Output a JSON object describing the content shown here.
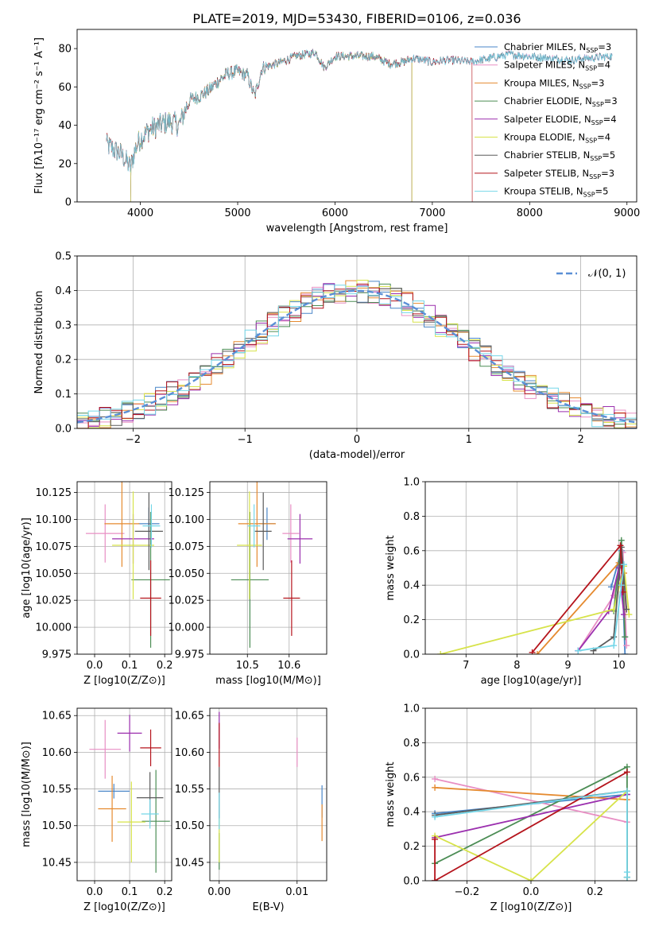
{
  "figure": {
    "title": "PLATE=2019, MJD=53430, FIBERID=0106, z=0.036",
    "series_colors": [
      "#4a86c8",
      "#e88fc4",
      "#e58a2f",
      "#4c8d55",
      "#9b2fae",
      "#d7e34a",
      "#5a5a5a",
      "#b5141c",
      "#74d6e8"
    ]
  },
  "chart_data": [
    {
      "id": "spectrum",
      "type": "line",
      "title": "PLATE=2019, MJD=53430, FIBERID=0106, z=0.036",
      "xlabel": "wavelength [Angstrom, rest frame]",
      "ylabel": "Flux [fλ10⁻¹⁷ erg cm⁻² s⁻¹ A⁻¹]",
      "xlim": [
        3350,
        9100
      ],
      "ylim": [
        0,
        90
      ],
      "xticks": [
        4000,
        5000,
        6000,
        7000,
        8000,
        9000
      ],
      "yticks": [
        0,
        20,
        40,
        60,
        80
      ],
      "legend_position": "top-right",
      "series": [
        {
          "name": "Chabrier MILES, N_SSP=3",
          "wave_range": [
            3650,
            8850
          ]
        },
        {
          "name": "Salpeter MILES, N_SSP=4",
          "wave_range": [
            3650,
            8850
          ]
        },
        {
          "name": "Kroupa MILES, N_SSP=3",
          "wave_range": [
            3650,
            6790
          ]
        },
        {
          "name": "Chabrier ELODIE, N_SSP=3",
          "wave_range": [
            3900,
            6790
          ]
        },
        {
          "name": "Salpeter ELODIE, N_SSP=4",
          "wave_range": [
            3900,
            6790
          ]
        },
        {
          "name": "Kroupa ELODIE, N_SSP=4",
          "wave_range": [
            3900,
            6790
          ]
        },
        {
          "name": "Chabrier STELIB, N_SSP=5",
          "wave_range": [
            3650,
            8850
          ]
        },
        {
          "name": "Salpeter STELIB, N_SSP=3",
          "wave_range": [
            3650,
            7410
          ]
        },
        {
          "name": "Kroupa STELIB, N_SSP=5",
          "wave_range": [
            3650,
            8850
          ]
        }
      ],
      "continuum_points": [
        [
          3650,
          30
        ],
        [
          3800,
          25
        ],
        [
          3900,
          18
        ],
        [
          3950,
          28
        ],
        [
          4000,
          33
        ],
        [
          4100,
          38
        ],
        [
          4300,
          42
        ],
        [
          4400,
          40
        ],
        [
          4500,
          53
        ],
        [
          4600,
          55
        ],
        [
          4700,
          58
        ],
        [
          4800,
          63
        ],
        [
          4900,
          67
        ],
        [
          5000,
          68
        ],
        [
          5100,
          66
        ],
        [
          5175,
          55
        ],
        [
          5250,
          70
        ],
        [
          5400,
          72
        ],
        [
          5600,
          76
        ],
        [
          5800,
          78
        ],
        [
          5890,
          70
        ],
        [
          6000,
          76
        ],
        [
          6200,
          76
        ],
        [
          6400,
          76
        ],
        [
          6560,
          72
        ],
        [
          6700,
          73
        ],
        [
          6800,
          75
        ],
        [
          7000,
          73
        ],
        [
          7200,
          74
        ],
        [
          7400,
          73
        ],
        [
          7600,
          75
        ],
        [
          7800,
          77
        ],
        [
          8000,
          76
        ],
        [
          8200,
          75
        ],
        [
          8400,
          74
        ],
        [
          8600,
          75
        ],
        [
          8850,
          76
        ]
      ]
    },
    {
      "id": "residuals",
      "type": "step",
      "xlabel": "(data-model)/error",
      "ylabel": "Normed distribution",
      "xlim": [
        -2.5,
        2.5
      ],
      "ylim": [
        0,
        0.5
      ],
      "xticks": [
        -2,
        -1,
        0,
        1,
        2
      ],
      "yticks": [
        0.0,
        0.1,
        0.2,
        0.3,
        0.4,
        0.5
      ],
      "bin_width": 0.1,
      "legend": "𝒩(0, 1)",
      "legend_position": "top-right",
      "reference_curve": "normal(0,1)"
    },
    {
      "id": "age-vs-Z",
      "type": "errorbar",
      "xlabel": "Z [log10(Z/Z⊙)]",
      "ylabel": "age  [log10(age/yr)]",
      "xlim": [
        -0.05,
        0.22
      ],
      "ylim": [
        9.975,
        10.135
      ],
      "xticks": [
        0.0,
        0.1,
        0.2
      ],
      "yticks": [
        9.975,
        10.0,
        10.025,
        10.05,
        10.075,
        10.1,
        10.125
      ],
      "points": [
        {
          "x": 0.155,
          "y": 10.096,
          "xerr": 0.03,
          "yerr": 0.015
        },
        {
          "x": 0.03,
          "y": 10.087,
          "xerr": 0.055,
          "yerr": 0.027
        },
        {
          "x": 0.078,
          "y": 10.096,
          "xerr": 0.05,
          "yerr": 0.04
        },
        {
          "x": 0.16,
          "y": 10.044,
          "xerr": 0.055,
          "yerr": 0.063
        },
        {
          "x": 0.11,
          "y": 10.082,
          "xerr": 0.06,
          "yerr": 0.023
        },
        {
          "x": 0.11,
          "y": 10.076,
          "xerr": 0.06,
          "yerr": 0.05
        },
        {
          "x": 0.155,
          "y": 10.089,
          "xerr": 0.04,
          "yerr": 0.036
        },
        {
          "x": 0.16,
          "y": 10.027,
          "xerr": 0.03,
          "yerr": 0.035
        },
        {
          "x": 0.162,
          "y": 10.094,
          "xerr": 0.025,
          "yerr": 0.02
        }
      ]
    },
    {
      "id": "age-vs-mass",
      "type": "errorbar",
      "xlabel": "mass [log10(M/M⊙)]",
      "ylabel": "",
      "xlim": [
        10.41,
        10.69
      ],
      "ylim": [
        9.975,
        10.135
      ],
      "xticks": [
        10.5,
        10.6
      ],
      "yticks": [
        9.975,
        10.0,
        10.025,
        10.05,
        10.075,
        10.1,
        10.125
      ],
      "points": [
        {
          "x": 10.547,
          "y": 10.096,
          "xerr": 0.02,
          "yerr": 0.015
        },
        {
          "x": 10.604,
          "y": 10.087,
          "xerr": 0.02,
          "yerr": 0.027
        },
        {
          "x": 10.523,
          "y": 10.096,
          "xerr": 0.045,
          "yerr": 0.04
        },
        {
          "x": 10.506,
          "y": 10.044,
          "xerr": 0.045,
          "yerr": 0.063
        },
        {
          "x": 10.626,
          "y": 10.082,
          "xerr": 0.03,
          "yerr": 0.023
        },
        {
          "x": 10.505,
          "y": 10.076,
          "xerr": 0.03,
          "yerr": 0.05
        },
        {
          "x": 10.538,
          "y": 10.089,
          "xerr": 0.02,
          "yerr": 0.036
        },
        {
          "x": 10.606,
          "y": 10.027,
          "xerr": 0.02,
          "yerr": 0.035
        },
        {
          "x": 10.516,
          "y": 10.094,
          "xerr": 0.015,
          "yerr": 0.02
        }
      ]
    },
    {
      "id": "weight-vs-age",
      "type": "line",
      "xlabel": "age  [log10(age/yr)]",
      "ylabel": "mass weight",
      "xlim": [
        6.2,
        10.35
      ],
      "ylim": [
        0,
        1
      ],
      "xticks": [
        7,
        8,
        9,
        10
      ],
      "yticks": [
        0.0,
        0.2,
        0.4,
        0.6,
        0.8,
        1.0
      ],
      "series": [
        {
          "points": [
            [
              9.85,
              0.39
            ],
            [
              10.05,
              0.6
            ],
            [
              10.12,
              0.0
            ]
          ]
        },
        {
          "points": [
            [
              9.2,
              0.02
            ],
            [
              9.9,
              0.34
            ],
            [
              10.08,
              0.59
            ],
            [
              10.15,
              0.05
            ]
          ]
        },
        {
          "points": [
            [
              8.4,
              0.0
            ],
            [
              10.0,
              0.53
            ],
            [
              10.1,
              0.47
            ]
          ]
        },
        {
          "points": [
            [
              9.9,
              0.25
            ],
            [
              10.05,
              0.66
            ],
            [
              10.12,
              0.1
            ]
          ]
        },
        {
          "points": [
            [
              9.2,
              0.02
            ],
            [
              9.8,
              0.25
            ],
            [
              10.0,
              0.5
            ],
            [
              10.1,
              0.23
            ]
          ]
        },
        {
          "points": [
            [
              6.5,
              0.0
            ],
            [
              9.9,
              0.26
            ],
            [
              10.1,
              0.51
            ],
            [
              10.2,
              0.23
            ]
          ]
        },
        {
          "points": [
            [
              9.5,
              0.02
            ],
            [
              9.9,
              0.1
            ],
            [
              10.05,
              0.62
            ],
            [
              10.15,
              0.26
            ]
          ]
        },
        {
          "points": [
            [
              8.3,
              0.01
            ],
            [
              10.03,
              0.63
            ],
            [
              10.08,
              0.36
            ]
          ]
        },
        {
          "points": [
            [
              9.2,
              0.02
            ],
            [
              9.9,
              0.05
            ],
            [
              10.05,
              0.4
            ],
            [
              10.1,
              0.52
            ]
          ]
        }
      ]
    },
    {
      "id": "mass-vs-Z",
      "type": "errorbar",
      "xlabel": "Z [log10(Z/Z⊙)]",
      "ylabel": "mass [log10(M/M⊙)]",
      "xlim": [
        -0.05,
        0.22
      ],
      "ylim": [
        10.425,
        10.66
      ],
      "xticks": [
        0.0,
        0.1,
        0.2
      ],
      "yticks": [
        10.45,
        10.5,
        10.55,
        10.6,
        10.65
      ],
      "points": [
        {
          "x": 0.055,
          "y": 10.547,
          "xerr": 0.045,
          "yerr": 0.01
        },
        {
          "x": 0.03,
          "y": 10.604,
          "xerr": 0.045,
          "yerr": 0.04
        },
        {
          "x": 0.05,
          "y": 10.523,
          "xerr": 0.04,
          "yerr": 0.045
        },
        {
          "x": 0.175,
          "y": 10.506,
          "xerr": 0.04,
          "yerr": 0.07
        },
        {
          "x": 0.1,
          "y": 10.626,
          "xerr": 0.035,
          "yerr": 0.025
        },
        {
          "x": 0.105,
          "y": 10.505,
          "xerr": 0.04,
          "yerr": 0.055
        },
        {
          "x": 0.158,
          "y": 10.538,
          "xerr": 0.038,
          "yerr": 0.035
        },
        {
          "x": 0.16,
          "y": 10.606,
          "xerr": 0.03,
          "yerr": 0.025
        },
        {
          "x": 0.158,
          "y": 10.516,
          "xerr": 0.025,
          "yerr": 0.02
        }
      ]
    },
    {
      "id": "mass-vs-ebv",
      "type": "errorbar",
      "xlabel": "E(B-V)",
      "ylabel": "",
      "xlim": [
        -0.0012,
        0.0138
      ],
      "ylim": [
        10.425,
        10.66
      ],
      "xticks": [
        0.0,
        0.01
      ],
      "yticks": [
        10.45,
        10.5,
        10.55,
        10.6,
        10.65
      ],
      "points": [
        {
          "x": 0.0132,
          "y": 10.533,
          "xerr": 0,
          "yerr": 0.022
        },
        {
          "x": 0.01,
          "y": 10.6,
          "xerr": 0,
          "yerr": 0.02
        },
        {
          "x": 0.0132,
          "y": 10.504,
          "xerr": 0,
          "yerr": 0.025
        },
        {
          "x": 0.0,
          "y": 10.465,
          "xerr": 0,
          "yerr": 0.025
        },
        {
          "x": 0.0,
          "y": 10.63,
          "xerr": 0,
          "yerr": 0.025
        },
        {
          "x": 0.0,
          "y": 10.48,
          "xerr": 0,
          "yerr": 0.03
        },
        {
          "x": 0.0,
          "y": 10.545,
          "xerr": 0,
          "yerr": 0.035
        },
        {
          "x": 0.0,
          "y": 10.61,
          "xerr": 0,
          "yerr": 0.03
        },
        {
          "x": 0.0,
          "y": 10.52,
          "xerr": 0,
          "yerr": 0.025
        }
      ]
    },
    {
      "id": "weight-vs-Z",
      "type": "line",
      "xlabel": "Z [log10(Z/Z⊙)]",
      "ylabel": "mass weight",
      "xlim": [
        -0.33,
        0.33
      ],
      "ylim": [
        0,
        1
      ],
      "xticks": [
        -0.2,
        0.0,
        0.2
      ],
      "yticks": [
        0.0,
        0.2,
        0.4,
        0.6,
        0.8,
        1.0
      ],
      "series": [
        {
          "points": [
            [
              -0.3,
              0.39
            ],
            [
              0.3,
              0.5
            ],
            [
              0.3,
              0.02
            ]
          ]
        },
        {
          "points": [
            [
              -0.3,
              0.59
            ],
            [
              0.3,
              0.34
            ]
          ]
        },
        {
          "points": [
            [
              -0.3,
              0.54
            ],
            [
              0.3,
              0.47
            ]
          ]
        },
        {
          "points": [
            [
              -0.3,
              0.1
            ],
            [
              0.3,
              0.66
            ],
            [
              0.3,
              0.02
            ]
          ]
        },
        {
          "points": [
            [
              -0.3,
              0.25
            ],
            [
              0.3,
              0.5
            ]
          ]
        },
        {
          "points": [
            [
              -0.3,
              0.26
            ],
            [
              0.0,
              0.0
            ],
            [
              0.3,
              0.52
            ],
            [
              0.3,
              0.02
            ]
          ]
        },
        {
          "points": [
            [
              -0.3,
              0.38
            ],
            [
              0.3,
              0.52
            ],
            [
              0.3,
              0.02
            ]
          ]
        },
        {
          "points": [
            [
              -0.3,
              0.0
            ],
            [
              -0.3,
              0.24
            ],
            [
              -0.3,
              0.0
            ],
            [
              0.3,
              0.63
            ]
          ]
        },
        {
          "points": [
            [
              -0.3,
              0.37
            ],
            [
              0.3,
              0.52
            ],
            [
              0.3,
              0.05
            ],
            [
              0.3,
              0.02
            ]
          ]
        }
      ]
    }
  ]
}
